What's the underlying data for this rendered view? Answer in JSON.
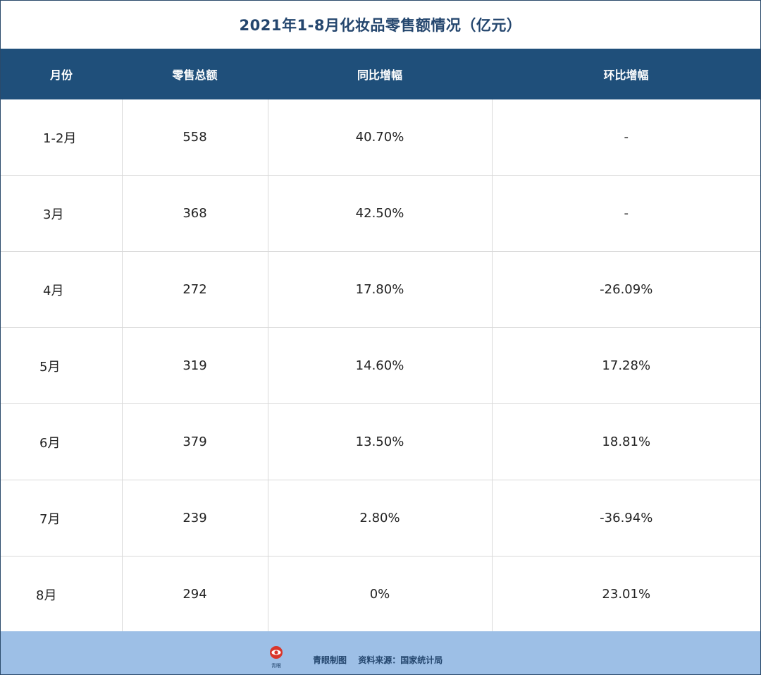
{
  "title": "2021年1-8月化妆品零售额情况（亿元）",
  "headers": [
    "月份",
    "零售总额",
    "同比增幅",
    "环比增幅"
  ],
  "rows": [
    {
      "month": "1-2月",
      "total": "558",
      "yoy": "40.70%",
      "mom": "-",
      "indent": 60
    },
    {
      "month": "3月",
      "total": "368",
      "yoy": "42.50%",
      "mom": "-",
      "indent": 60
    },
    {
      "month": "4月",
      "total": "272",
      "yoy": "17.80%",
      "mom": "-26.09%",
      "indent": 60
    },
    {
      "month": "5月",
      "total": "319",
      "yoy": "14.60%",
      "mom": "17.28%",
      "indent": 55
    },
    {
      "month": "6月",
      "total": "379",
      "yoy": "13.50%",
      "mom": "18.81%",
      "indent": 55
    },
    {
      "month": "7月",
      "total": "239",
      "yoy": "2.80%",
      "mom": "-36.94%",
      "indent": 55
    },
    {
      "month": "8月",
      "total": "294",
      "yoy": "0%",
      "mom": "23.01%",
      "indent": 50
    }
  ],
  "footer": {
    "logo_text": "青眼",
    "credit": "青眼制图",
    "source": "资料来源：国家统计局"
  },
  "colors": {
    "header_bg": "#1f4f7a",
    "title_text": "#24466e",
    "footer_bg": "#9dbfe6",
    "logo_red": "#d9362b"
  }
}
